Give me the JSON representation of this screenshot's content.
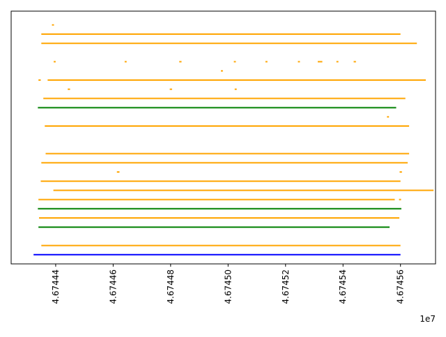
{
  "chart_data": {
    "type": "timeline-segments",
    "title": "",
    "xlabel": "",
    "ylabel": "",
    "x_offset_label": "1e7",
    "xlim": [
      46744245,
      46745722
    ],
    "x_ticks": [
      46744400,
      46744600,
      46744800,
      46745000,
      46745200,
      46745400,
      46745600
    ],
    "x_tick_labels": [
      "4.67444",
      "4.67446",
      "4.67448",
      "4.67450",
      "4.67452",
      "4.67454",
      "4.67456"
    ],
    "ylim": [
      -1,
      26.5
    ],
    "y_ticks_shown": false,
    "grid": false,
    "legend": "none",
    "colors": {
      "orange": "#ffa500",
      "green": "#008000",
      "blue": "#0000ff"
    },
    "segments": [
      {
        "track": 0,
        "start": 46744323,
        "end": 46745600,
        "color": "blue"
      },
      {
        "track": 1,
        "start": 46744350,
        "end": 46745600,
        "color": "orange"
      },
      {
        "track": 3,
        "start": 46744340,
        "end": 46745562,
        "color": "green"
      },
      {
        "track": 4,
        "start": 46744342,
        "end": 46745596,
        "color": "orange"
      },
      {
        "track": 5,
        "start": 46744338,
        "end": 46745603,
        "color": "green"
      },
      {
        "track": 6,
        "start": 46744340,
        "end": 46745580,
        "color": "orange"
      },
      {
        "track": 6,
        "start": 46745595,
        "end": 46745602,
        "color": "orange"
      },
      {
        "track": 7,
        "start": 46744392,
        "end": 46745715,
        "color": "orange"
      },
      {
        "track": 8,
        "start": 46744348,
        "end": 46745600,
        "color": "orange"
      },
      {
        "track": 9,
        "start": 46744613,
        "end": 46744622,
        "color": "orange"
      },
      {
        "track": 9,
        "start": 46745597,
        "end": 46745605,
        "color": "orange"
      },
      {
        "track": 10,
        "start": 46744350,
        "end": 46745625,
        "color": "orange"
      },
      {
        "track": 11,
        "start": 46744365,
        "end": 46745630,
        "color": "orange"
      },
      {
        "track": 14,
        "start": 46744362,
        "end": 46745630,
        "color": "orange"
      },
      {
        "track": 15,
        "start": 46745553,
        "end": 46745560,
        "color": "orange"
      },
      {
        "track": 16,
        "start": 46744338,
        "end": 46745585,
        "color": "green"
      },
      {
        "track": 17,
        "start": 46744357,
        "end": 46745617,
        "color": "orange"
      },
      {
        "track": 18,
        "start": 46744442,
        "end": 46744450,
        "color": "orange"
      },
      {
        "track": 18,
        "start": 46744797,
        "end": 46744805,
        "color": "orange"
      },
      {
        "track": 18,
        "start": 46745023,
        "end": 46745030,
        "color": "orange"
      },
      {
        "track": 19,
        "start": 46744340,
        "end": 46744348,
        "color": "orange"
      },
      {
        "track": 19,
        "start": 46744372,
        "end": 46745688,
        "color": "orange"
      },
      {
        "track": 20,
        "start": 46744975,
        "end": 46744982,
        "color": "orange"
      },
      {
        "track": 21,
        "start": 46744393,
        "end": 46744400,
        "color": "orange"
      },
      {
        "track": 21,
        "start": 46744640,
        "end": 46744647,
        "color": "orange"
      },
      {
        "track": 21,
        "start": 46744830,
        "end": 46744838,
        "color": "orange"
      },
      {
        "track": 21,
        "start": 46745020,
        "end": 46745027,
        "color": "orange"
      },
      {
        "track": 21,
        "start": 46745130,
        "end": 46745137,
        "color": "orange"
      },
      {
        "track": 21,
        "start": 46745243,
        "end": 46745250,
        "color": "orange"
      },
      {
        "track": 21,
        "start": 46745312,
        "end": 46745328,
        "color": "orange"
      },
      {
        "track": 21,
        "start": 46745377,
        "end": 46745384,
        "color": "orange"
      },
      {
        "track": 21,
        "start": 46745437,
        "end": 46745445,
        "color": "orange"
      },
      {
        "track": 23,
        "start": 46744350,
        "end": 46745657,
        "color": "orange"
      },
      {
        "track": 24,
        "start": 46744350,
        "end": 46745600,
        "color": "orange"
      },
      {
        "track": 25,
        "start": 46744387,
        "end": 46744394,
        "color": "orange"
      }
    ]
  }
}
